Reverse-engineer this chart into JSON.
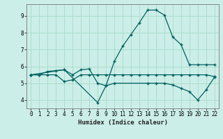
{
  "xlabel": "Humidex (Indice chaleur)",
  "bg_color": "#cceee8",
  "grid_color": "#aaddcc",
  "line_color": "#006060",
  "xlim": [
    -0.5,
    22.5
  ],
  "ylim": [
    3.5,
    9.7
  ],
  "xticks": [
    0,
    1,
    2,
    3,
    4,
    5,
    6,
    7,
    8,
    9,
    10,
    11,
    12,
    13,
    14,
    15,
    16,
    17,
    18,
    19,
    20,
    21,
    22
  ],
  "yticks": [
    4,
    5,
    6,
    7,
    8,
    9
  ],
  "line1_x": [
    0,
    1,
    2,
    3,
    4,
    5,
    6,
    7,
    8,
    9,
    10,
    11,
    12,
    13,
    14,
    15,
    16,
    17,
    18,
    19,
    20,
    21,
    22
  ],
  "line1_y": [
    5.5,
    5.5,
    5.7,
    5.75,
    5.8,
    5.5,
    5.8,
    5.85,
    5.0,
    4.85,
    6.3,
    7.2,
    7.9,
    8.6,
    9.35,
    9.35,
    9.05,
    7.75,
    7.3,
    6.1,
    6.1,
    6.1,
    6.1
  ],
  "line2_x": [
    0,
    1,
    2,
    3,
    4,
    5,
    6,
    7,
    8,
    9,
    10,
    11,
    12,
    13,
    14,
    15,
    16,
    17,
    18,
    19,
    20,
    21,
    22
  ],
  "line2_y": [
    5.5,
    5.5,
    5.5,
    5.5,
    5.1,
    5.2,
    5.5,
    5.5,
    5.5,
    5.5,
    5.5,
    5.5,
    5.5,
    5.5,
    5.5,
    5.5,
    5.5,
    5.5,
    5.5,
    5.5,
    5.5,
    5.5,
    5.4
  ],
  "line3_x": [
    0,
    4,
    8,
    9,
    10,
    14,
    15,
    16,
    17,
    18,
    19,
    20,
    21,
    22
  ],
  "line3_y": [
    5.5,
    5.8,
    3.85,
    4.85,
    5.0,
    5.0,
    5.0,
    5.0,
    4.9,
    4.7,
    4.5,
    4.0,
    4.6,
    5.35
  ]
}
